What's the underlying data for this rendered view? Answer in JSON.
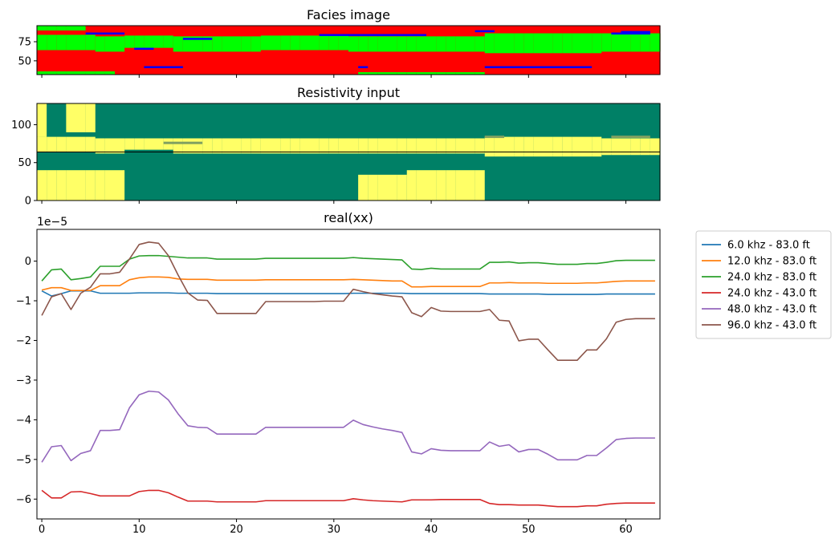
{
  "chart_data": [
    {
      "type": "heatmap",
      "title": "Facies image",
      "xlim": [
        -0.5,
        63.5
      ],
      "ylim": [
        32,
        96
      ],
      "ytick_labels": [
        "50",
        "75"
      ],
      "yticks": [
        50,
        75
      ],
      "xticks": [
        0,
        10,
        20,
        30,
        40,
        50,
        60
      ],
      "colors": {
        "sand": "#ff0000",
        "shale": "#00ff00",
        "thin": "#0000ff"
      },
      "description_layers": [
        {
          "y_from": 32,
          "y_to": 35,
          "facies": "mixed"
        },
        {
          "y_from": 35,
          "y_to": 62,
          "facies": "sand"
        },
        {
          "y_from": 62,
          "y_to": 82,
          "facies": "shale"
        },
        {
          "y_from": 82,
          "y_to": 96,
          "facies": "sand"
        }
      ]
    },
    {
      "type": "heatmap",
      "title": "Resistivity input",
      "xlim": [
        -0.5,
        63.5
      ],
      "ylim": [
        0,
        128
      ],
      "yticks": [
        0,
        50,
        100
      ],
      "ytick_labels": [
        "0",
        "50",
        "100"
      ],
      "xticks": [
        0,
        10,
        20,
        30,
        40,
        50,
        60
      ],
      "colors": {
        "low": "#ffff66",
        "high": "#008066",
        "mid": "#7fa060"
      }
    },
    {
      "type": "line",
      "title": "real(xx)",
      "offset_text": "1e−5",
      "xlim": [
        -0.5,
        63.5
      ],
      "ylim": [
        -6.5,
        0.8
      ],
      "xticks": [
        0,
        10,
        20,
        30,
        40,
        50,
        60
      ],
      "xtick_labels": [
        "0",
        "10",
        "20",
        "30",
        "40",
        "50",
        "60"
      ],
      "yticks": [
        -6,
        -5,
        -4,
        -3,
        -2,
        -1,
        0
      ],
      "ytick_labels": [
        "−6",
        "−5",
        "−4",
        "−3",
        "−2",
        "−1",
        "0"
      ],
      "legend_position": "outside-right-top",
      "x": [
        0,
        1,
        2,
        3,
        4,
        5,
        6,
        7,
        8,
        9,
        10,
        11,
        12,
        13,
        14,
        15,
        16,
        17,
        18,
        19,
        20,
        21,
        22,
        23,
        24,
        25,
        26,
        27,
        28,
        29,
        30,
        31,
        32,
        33,
        34,
        35,
        36,
        37,
        38,
        39,
        40,
        41,
        42,
        43,
        44,
        45,
        46,
        47,
        48,
        49,
        50,
        51,
        52,
        53,
        54,
        55,
        56,
        57,
        58,
        59,
        60,
        61,
        62,
        63
      ],
      "series": [
        {
          "name": "6.0 khz - 83.0 ft",
          "color": "#1f77b4",
          "values": [
            -0.75,
            -0.88,
            -0.82,
            -0.75,
            -0.75,
            -0.75,
            -0.81,
            -0.81,
            -0.81,
            -0.81,
            -0.8,
            -0.8,
            -0.8,
            -0.8,
            -0.81,
            -0.81,
            -0.81,
            -0.81,
            -0.82,
            -0.82,
            -0.82,
            -0.82,
            -0.82,
            -0.82,
            -0.82,
            -0.82,
            -0.82,
            -0.82,
            -0.82,
            -0.82,
            -0.82,
            -0.82,
            -0.81,
            -0.81,
            -0.81,
            -0.81,
            -0.81,
            -0.81,
            -0.82,
            -0.82,
            -0.82,
            -0.82,
            -0.82,
            -0.82,
            -0.82,
            -0.82,
            -0.83,
            -0.83,
            -0.83,
            -0.83,
            -0.83,
            -0.83,
            -0.84,
            -0.84,
            -0.84,
            -0.84,
            -0.84,
            -0.84,
            -0.83,
            -0.83,
            -0.83,
            -0.83,
            -0.83,
            -0.83
          ]
        },
        {
          "name": "12.0 khz - 83.0 ft",
          "color": "#ff7f0e",
          "values": [
            -0.73,
            -0.67,
            -0.67,
            -0.74,
            -0.74,
            -0.74,
            -0.62,
            -0.62,
            -0.62,
            -0.47,
            -0.42,
            -0.4,
            -0.4,
            -0.41,
            -0.45,
            -0.46,
            -0.46,
            -0.46,
            -0.48,
            -0.48,
            -0.48,
            -0.48,
            -0.48,
            -0.47,
            -0.47,
            -0.47,
            -0.47,
            -0.47,
            -0.47,
            -0.47,
            -0.47,
            -0.47,
            -0.46,
            -0.47,
            -0.48,
            -0.49,
            -0.5,
            -0.5,
            -0.65,
            -0.65,
            -0.64,
            -0.64,
            -0.64,
            -0.64,
            -0.64,
            -0.64,
            -0.55,
            -0.55,
            -0.54,
            -0.55,
            -0.55,
            -0.55,
            -0.56,
            -0.56,
            -0.56,
            -0.56,
            -0.55,
            -0.55,
            -0.53,
            -0.51,
            -0.5,
            -0.5,
            -0.5,
            -0.5
          ]
        },
        {
          "name": "24.0 khz - 83.0 ft",
          "color": "#2ca02c",
          "values": [
            -0.5,
            -0.22,
            -0.2,
            -0.47,
            -0.44,
            -0.4,
            -0.13,
            -0.13,
            -0.13,
            0.05,
            0.13,
            0.14,
            0.14,
            0.12,
            0.1,
            0.08,
            0.08,
            0.08,
            0.05,
            0.05,
            0.05,
            0.05,
            0.05,
            0.07,
            0.07,
            0.07,
            0.07,
            0.07,
            0.07,
            0.07,
            0.07,
            0.07,
            0.09,
            0.07,
            0.06,
            0.05,
            0.04,
            0.03,
            -0.2,
            -0.21,
            -0.18,
            -0.2,
            -0.2,
            -0.2,
            -0.2,
            -0.2,
            -0.03,
            -0.03,
            -0.02,
            -0.05,
            -0.04,
            -0.04,
            -0.06,
            -0.08,
            -0.08,
            -0.08,
            -0.06,
            -0.06,
            -0.03,
            0.01,
            0.02,
            0.02,
            0.02,
            0.02
          ]
        },
        {
          "name": "24.0 khz - 43.0 ft",
          "color": "#d62728",
          "values": [
            -5.78,
            -5.97,
            -5.97,
            -5.82,
            -5.81,
            -5.86,
            -5.92,
            -5.92,
            -5.92,
            -5.92,
            -5.81,
            -5.78,
            -5.78,
            -5.84,
            -5.95,
            -6.05,
            -6.05,
            -6.05,
            -6.07,
            -6.07,
            -6.07,
            -6.07,
            -6.07,
            -6.04,
            -6.04,
            -6.04,
            -6.04,
            -6.04,
            -6.04,
            -6.04,
            -6.04,
            -6.04,
            -5.99,
            -6.02,
            -6.04,
            -6.05,
            -6.06,
            -6.07,
            -6.02,
            -6.02,
            -6.02,
            -6.01,
            -6.01,
            -6.01,
            -6.01,
            -6.01,
            -6.11,
            -6.14,
            -6.14,
            -6.15,
            -6.15,
            -6.15,
            -6.17,
            -6.19,
            -6.19,
            -6.19,
            -6.17,
            -6.17,
            -6.13,
            -6.11,
            -6.1,
            -6.1,
            -6.1,
            -6.1
          ]
        },
        {
          "name": "48.0 khz - 43.0 ft",
          "color": "#9467bd",
          "values": [
            -5.07,
            -4.68,
            -4.65,
            -5.03,
            -4.85,
            -4.78,
            -4.27,
            -4.27,
            -4.25,
            -3.7,
            -3.37,
            -3.28,
            -3.3,
            -3.5,
            -3.85,
            -4.15,
            -4.19,
            -4.2,
            -4.36,
            -4.36,
            -4.36,
            -4.36,
            -4.36,
            -4.19,
            -4.19,
            -4.19,
            -4.19,
            -4.19,
            -4.19,
            -4.19,
            -4.19,
            -4.19,
            -4.01,
            -4.12,
            -4.18,
            -4.23,
            -4.27,
            -4.32,
            -4.81,
            -4.86,
            -4.73,
            -4.77,
            -4.78,
            -4.78,
            -4.78,
            -4.78,
            -4.56,
            -4.67,
            -4.63,
            -4.81,
            -4.75,
            -4.75,
            -4.87,
            -5.01,
            -5.01,
            -5.01,
            -4.9,
            -4.9,
            -4.71,
            -4.5,
            -4.47,
            -4.46,
            -4.46,
            -4.46
          ]
        },
        {
          "name": "96.0 khz - 43.0 ft",
          "color": "#8c564b",
          "values": [
            -1.37,
            -0.9,
            -0.82,
            -1.22,
            -0.81,
            -0.66,
            -0.32,
            -0.32,
            -0.28,
            0.05,
            0.42,
            0.48,
            0.45,
            0.14,
            -0.35,
            -0.8,
            -0.98,
            -0.99,
            -1.32,
            -1.32,
            -1.32,
            -1.32,
            -1.32,
            -1.02,
            -1.02,
            -1.02,
            -1.02,
            -1.02,
            -1.02,
            -1.01,
            -1.01,
            -1.01,
            -0.71,
            -0.77,
            -0.82,
            -0.85,
            -0.88,
            -0.9,
            -1.3,
            -1.4,
            -1.17,
            -1.26,
            -1.27,
            -1.27,
            -1.27,
            -1.27,
            -1.22,
            -1.49,
            -1.51,
            -2.01,
            -1.97,
            -1.97,
            -2.24,
            -2.5,
            -2.5,
            -2.5,
            -2.24,
            -2.24,
            -1.96,
            -1.54,
            -1.47,
            -1.45,
            -1.45,
            -1.45
          ]
        }
      ]
    }
  ]
}
